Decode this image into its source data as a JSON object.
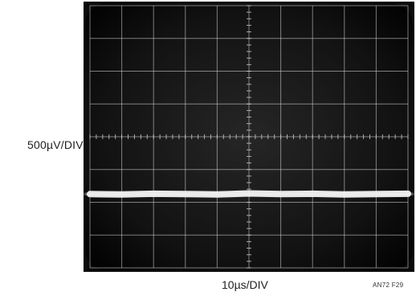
{
  "chart_data": {
    "type": "line",
    "title": "",
    "xlabel": "10µs/DIV",
    "ylabel": "500µV/DIV",
    "x_divisions": 10,
    "y_divisions": 8,
    "grid": true,
    "series": [
      {
        "x": [
          0,
          1,
          2,
          3,
          4,
          5,
          6,
          7,
          8,
          9,
          10
        ],
        "values": [
          -1.75,
          -1.76,
          -1.74,
          -1.75,
          -1.76,
          -1.73,
          -1.75,
          -1.74,
          -1.76,
          -1.75,
          -1.74
        ]
      }
    ]
  },
  "figure_id": "AN72 F29",
  "colors": {
    "screen": "#0b0b0b",
    "grid": "#d8d8d8",
    "trace": "#f2f2f2",
    "page": "#ffffff"
  }
}
